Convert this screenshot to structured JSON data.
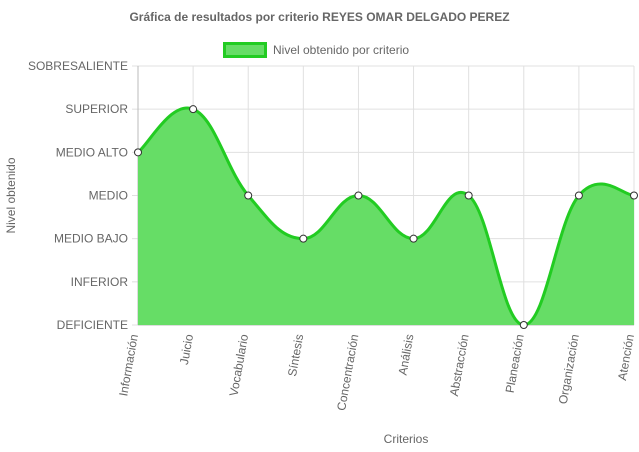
{
  "chart_data": {
    "type": "area",
    "title": "Gráfica de resultados por criterio REYES OMAR DELGADO PEREZ",
    "xlabel": "Criterios",
    "ylabel": "Nivel obtenido",
    "categories": [
      "Información",
      "Juicio",
      "Vocabulario",
      "Síntesis",
      "Concentración",
      "Análisis",
      "Abstracción",
      "Planeación",
      "Organización",
      "Atención"
    ],
    "y_levels": [
      "DEFICIENTE",
      "INFERIOR",
      "MEDIO BAJO",
      "MEDIO",
      "MEDIO ALTO",
      "SUPERIOR",
      "SOBRESALIENTE"
    ],
    "series": [
      {
        "name": "Nivel obtenido por criterio",
        "values": [
          4,
          5,
          3,
          2,
          3,
          2,
          3,
          0,
          3,
          3
        ],
        "value_labels": [
          "MEDIO ALTO",
          "SUPERIOR",
          "MEDIO",
          "MEDIO BAJO",
          "MEDIO",
          "MEDIO BAJO",
          "MEDIO",
          "DEFICIENTE",
          "MEDIO",
          "MEDIO"
        ]
      }
    ],
    "ylim": [
      0,
      6
    ],
    "grid": true,
    "legend_position": "top",
    "colors": {
      "fill": "#66dd66",
      "line": "#22cc22",
      "point_fill": "#ffffff",
      "point_stroke": "#333333",
      "grid": "#e0e0e0",
      "text": "#666666"
    }
  }
}
